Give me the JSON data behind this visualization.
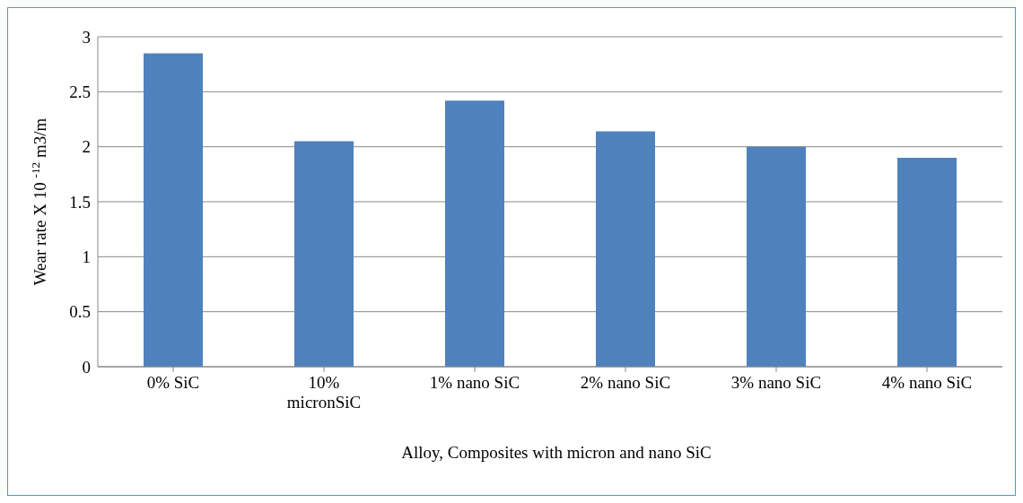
{
  "chart_data": {
    "type": "bar",
    "xlabel": "Alloy, Composites with micron and nano SiC",
    "ylabel": "Wear rate X 10 $^{-12}$ m3/m",
    "categories": [
      "0% SiC",
      "10% micronSiC",
      "1% nano SiC",
      "2% nano SiC",
      "3% nano SiC",
      "4% nano SiC"
    ],
    "values": [
      2.85,
      2.05,
      2.42,
      2.14,
      2.0,
      1.9
    ],
    "color": "#4f81bd",
    "ylim": [
      0,
      3
    ],
    "yticks": [
      0,
      0.5,
      1,
      1.5,
      2,
      2.5,
      3
    ],
    "grid": "y",
    "legend": false
  }
}
